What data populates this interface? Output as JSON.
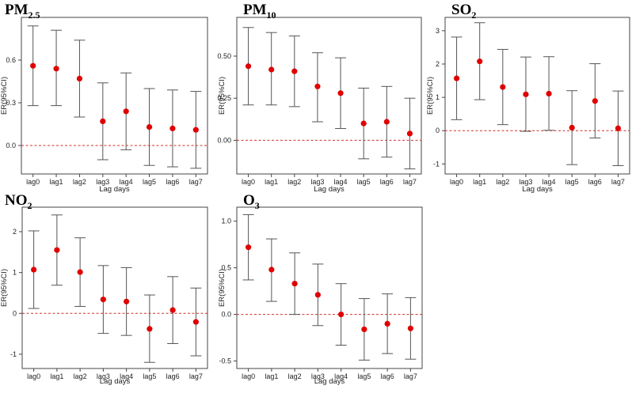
{
  "figure": {
    "ylabel": "ER(95%CI)",
    "xlabel": "Lag days",
    "colors": {
      "point": "#e00000",
      "ref_line": "#d03030",
      "bar": "#555555",
      "frame": "#444444"
    }
  },
  "chart_data": [
    {
      "type": "errorbar",
      "title": "PM2.5",
      "title_main": "PM",
      "title_sub": "2.5",
      "xlabel": "Lag days",
      "ylabel": "ER(95%CI)",
      "categories": [
        "lag0",
        "lag1",
        "lag2",
        "lag3",
        "lag4",
        "lag5",
        "lag6",
        "lag7"
      ],
      "values": [
        0.56,
        0.54,
        0.47,
        0.17,
        0.24,
        0.13,
        0.12,
        0.11
      ],
      "lower": [
        0.28,
        0.28,
        0.2,
        -0.1,
        -0.03,
        -0.14,
        -0.15,
        -0.16
      ],
      "upper": [
        0.84,
        0.81,
        0.74,
        0.44,
        0.51,
        0.4,
        0.39,
        0.38
      ],
      "yticks": [
        0.0,
        0.3,
        0.6
      ],
      "ytick_labels": [
        "0.0",
        "0.3",
        "0.6"
      ],
      "ylim": [
        -0.2,
        0.9
      ],
      "ref_line": 0
    },
    {
      "type": "errorbar",
      "title": "PM10",
      "title_main": "PM",
      "title_sub": "10",
      "xlabel": "Lag days",
      "ylabel": "ER(95%CI)",
      "categories": [
        "lag0",
        "lag1",
        "lag2",
        "lag3",
        "lag4",
        "lag5",
        "lag6",
        "lag7"
      ],
      "values": [
        0.44,
        0.42,
        0.41,
        0.32,
        0.28,
        0.1,
        0.11,
        0.04
      ],
      "lower": [
        0.21,
        0.21,
        0.2,
        0.11,
        0.07,
        -0.11,
        -0.1,
        -0.17
      ],
      "upper": [
        0.67,
        0.64,
        0.62,
        0.52,
        0.49,
        0.31,
        0.32,
        0.25
      ],
      "yticks": [
        0.0,
        0.25,
        0.5
      ],
      "ytick_labels": [
        "0.00",
        "0.25",
        "0.50"
      ],
      "ylim": [
        -0.2,
        0.73
      ],
      "ref_line": 0
    },
    {
      "type": "errorbar",
      "title": "SO2",
      "title_main": "SO",
      "title_sub": "2",
      "xlabel": "Lag days",
      "ylabel": "ER(95%CI)",
      "categories": [
        "lag0",
        "lag1",
        "lag2",
        "lag3",
        "lag4",
        "lag5",
        "lag6",
        "lag7"
      ],
      "values": [
        1.57,
        2.08,
        1.31,
        1.09,
        1.11,
        0.09,
        0.89,
        0.07
      ],
      "lower": [
        0.33,
        0.93,
        0.18,
        -0.02,
        0.01,
        -1.02,
        -0.22,
        -1.05
      ],
      "upper": [
        2.81,
        3.24,
        2.44,
        2.21,
        2.22,
        1.2,
        2.01,
        1.19
      ],
      "yticks": [
        -1,
        0,
        1,
        2,
        3
      ],
      "ytick_labels": [
        "-1",
        "0",
        "1",
        "2",
        "3"
      ],
      "ylim": [
        -1.3,
        3.4
      ],
      "ref_line": 0
    },
    {
      "type": "errorbar",
      "title": "NO2",
      "title_main": "NO",
      "title_sub": "2",
      "xlabel": "Lag days",
      "ylabel": "ER(95%CI)",
      "categories": [
        "lag0",
        "lag1",
        "lag2",
        "lag3",
        "lag4",
        "lag5",
        "lag6",
        "lag7"
      ],
      "values": [
        1.07,
        1.55,
        1.01,
        0.34,
        0.29,
        -0.38,
        0.08,
        -0.21
      ],
      "lower": [
        0.12,
        0.69,
        0.17,
        -0.49,
        -0.54,
        -1.2,
        -0.74,
        -1.04
      ],
      "upper": [
        2.02,
        2.41,
        1.85,
        1.17,
        1.12,
        0.45,
        0.9,
        0.62
      ],
      "yticks": [
        -1,
        0,
        1,
        2
      ],
      "ytick_labels": [
        "-1",
        "0",
        "1",
        "2"
      ],
      "ylim": [
        -1.35,
        2.6
      ],
      "ref_line": 0
    },
    {
      "type": "errorbar",
      "title": "O3",
      "title_main": "O",
      "title_sub": "3",
      "xlabel": "Lag days",
      "ylabel": "ER(95%CI)",
      "categories": [
        "lag0",
        "lag1",
        "lag2",
        "lag3",
        "lag4",
        "lag5",
        "lag6",
        "lag7"
      ],
      "values": [
        0.72,
        0.48,
        0.33,
        0.21,
        0.0,
        -0.16,
        -0.1,
        -0.15
      ],
      "lower": [
        0.37,
        0.14,
        0.0,
        -0.12,
        -0.33,
        -0.49,
        -0.42,
        -0.48
      ],
      "upper": [
        1.07,
        0.81,
        0.66,
        0.54,
        0.33,
        0.17,
        0.22,
        0.18
      ],
      "yticks": [
        -0.5,
        0.0,
        0.5,
        1.0
      ],
      "ytick_labels": [
        "-0.5",
        "0.0",
        "0.5",
        "1.0"
      ],
      "ylim": [
        -0.58,
        1.15
      ],
      "ref_line": 0
    }
  ]
}
